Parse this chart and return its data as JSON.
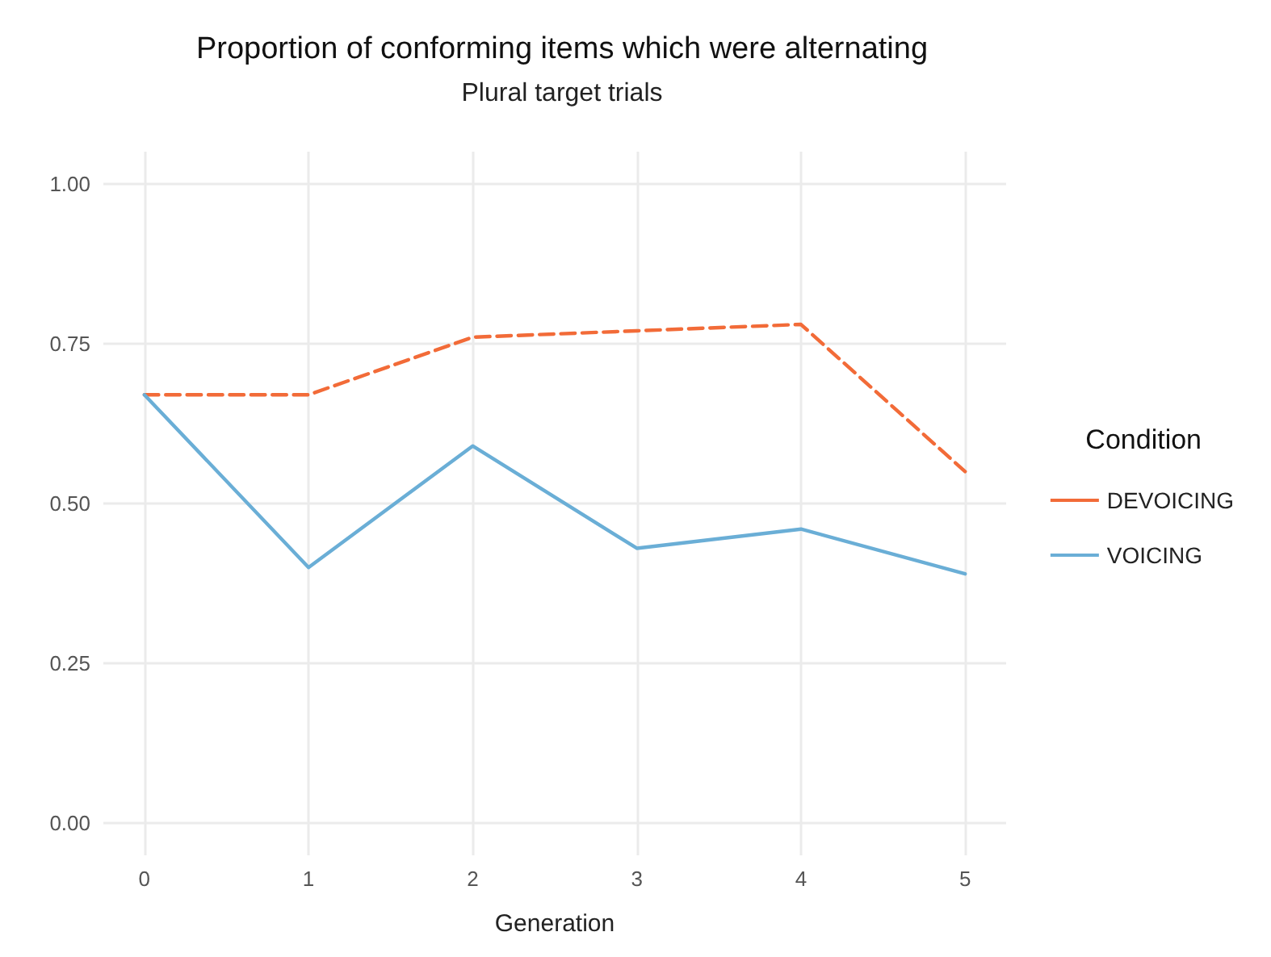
{
  "chart_data": {
    "type": "line",
    "title": "Proportion of conforming items which were alternating",
    "subtitle": "Plural target trials",
    "xlabel": "Generation",
    "legend_title": "Condition",
    "x": [
      0,
      1,
      2,
      3,
      4,
      5
    ],
    "series": [
      {
        "name": "DEVOICING",
        "color": "#f26b38",
        "line_style": "dashed",
        "values": [
          0.67,
          0.67,
          0.76,
          0.77,
          0.78,
          0.55
        ]
      },
      {
        "name": "VOICING",
        "color": "#6aaed6",
        "line_style": "solid",
        "values": [
          0.67,
          0.4,
          0.59,
          0.43,
          0.46,
          0.39
        ]
      }
    ],
    "xlim": [
      -0.25,
      5.25
    ],
    "xticks": [
      0,
      1,
      2,
      3,
      4,
      5
    ],
    "ylim": [
      -0.05,
      1.05
    ],
    "yticks": [
      {
        "value": 0,
        "label": "0.00"
      },
      {
        "value": 0.25,
        "label": "0.25"
      },
      {
        "value": 0.5,
        "label": "0.50"
      },
      {
        "value": 0.75,
        "label": "0.75"
      },
      {
        "value": 1,
        "label": "1.00"
      }
    ],
    "grid": true,
    "legend": "right",
    "marker": "none"
  }
}
